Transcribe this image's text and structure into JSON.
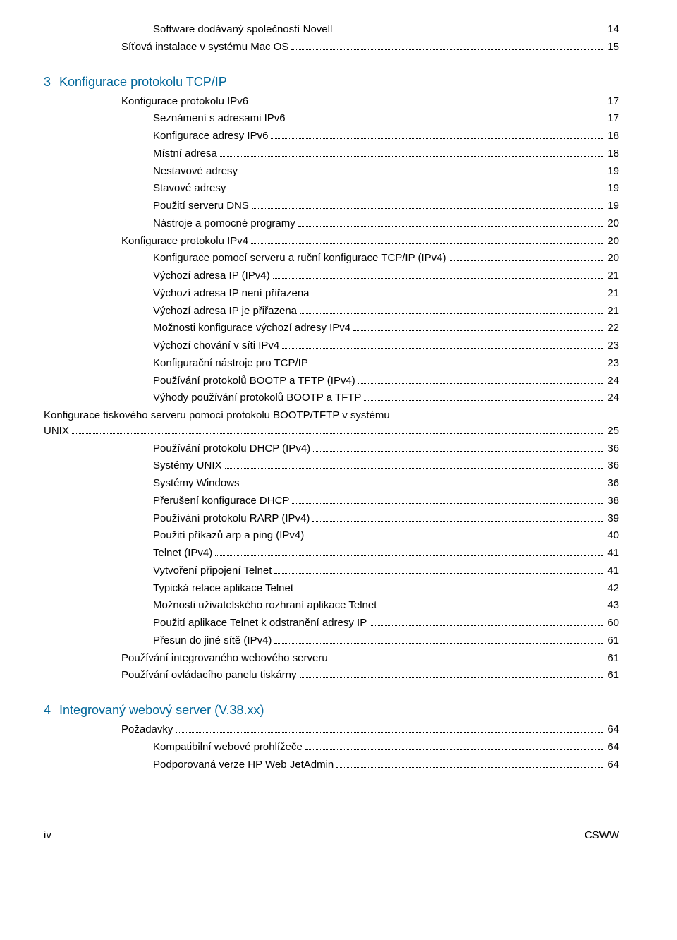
{
  "colors": {
    "heading": "#006699",
    "text": "#000000",
    "background": "#ffffff"
  },
  "typography": {
    "body_font": "Arial",
    "body_size_pt": 11,
    "heading_size_pt": 13
  },
  "entries": [
    {
      "level": 3,
      "label": "Software dodávaný společností Novell",
      "page": "14"
    },
    {
      "level": 2,
      "label": "Síťová instalace v systému Mac OS",
      "page": "15"
    },
    {
      "section_num": "3",
      "section_title": "Konfigurace protokolu TCP/IP"
    },
    {
      "level": 2,
      "label": "Konfigurace protokolu IPv6",
      "page": "17"
    },
    {
      "level": 3,
      "label": "Seznámení s adresami IPv6",
      "page": "17"
    },
    {
      "level": 3,
      "label": "Konfigurace adresy IPv6",
      "page": "18"
    },
    {
      "level": 3,
      "label": "Místní adresa",
      "page": "18"
    },
    {
      "level": 3,
      "label": "Nestavové adresy",
      "page": "19"
    },
    {
      "level": 3,
      "label": "Stavové adresy",
      "page": "19"
    },
    {
      "level": 3,
      "label": "Použití serveru DNS",
      "page": "19"
    },
    {
      "level": 3,
      "label": "Nástroje a pomocné programy",
      "page": "20"
    },
    {
      "level": 2,
      "label": "Konfigurace protokolu IPv4",
      "page": "20"
    },
    {
      "level": 3,
      "label": "Konfigurace pomocí serveru a ruční konfigurace TCP/IP (IPv4)",
      "page": "20"
    },
    {
      "level": 3,
      "label": "Výchozí adresa IP (IPv4)",
      "page": "21"
    },
    {
      "level": 3,
      "label": "Výchozí adresa IP není přiřazena",
      "page": "21"
    },
    {
      "level": 3,
      "label": "Výchozí adresa IP je přiřazena",
      "page": "21"
    },
    {
      "level": 3,
      "label": "Možnosti konfigurace výchozí adresy IPv4",
      "page": "22"
    },
    {
      "level": 3,
      "label": "Výchozí chování v síti IPv4",
      "page": "23"
    },
    {
      "level": 3,
      "label": "Konfigurační nástroje pro TCP/IP",
      "page": "23"
    },
    {
      "level": 3,
      "label": "Používání protokolů BOOTP a TFTP (IPv4)",
      "page": "24"
    },
    {
      "level": 3,
      "label": "Výhody používání protokolů BOOTP a TFTP",
      "page": "24"
    },
    {
      "level": 3,
      "label": "Konfigurace tiskového serveru pomocí protokolu BOOTP/TFTP v systému UNIX",
      "page": "25",
      "multiline": true
    },
    {
      "level": 3,
      "label": "Používání protokolu DHCP (IPv4)",
      "page": "36"
    },
    {
      "level": 3,
      "label": "Systémy UNIX",
      "page": "36"
    },
    {
      "level": 3,
      "label": "Systémy Windows",
      "page": "36"
    },
    {
      "level": 3,
      "label": "Přerušení konfigurace DHCP",
      "page": "38"
    },
    {
      "level": 3,
      "label": "Používání protokolu RARP (IPv4)",
      "page": "39"
    },
    {
      "level": 3,
      "label": "Použití příkazů arp a ping (IPv4)",
      "page": "40"
    },
    {
      "level": 3,
      "label": "Telnet (IPv4)",
      "page": "41"
    },
    {
      "level": 3,
      "label": "Vytvoření připojení Telnet",
      "page": "41"
    },
    {
      "level": 3,
      "label": "Typická relace aplikace Telnet",
      "page": "42"
    },
    {
      "level": 3,
      "label": "Možnosti uživatelského rozhraní aplikace Telnet",
      "page": "43"
    },
    {
      "level": 3,
      "label": "Použití aplikace Telnet k odstranění adresy IP",
      "page": "60"
    },
    {
      "level": 3,
      "label": "Přesun do jiné sítě (IPv4)",
      "page": "61"
    },
    {
      "level": 2,
      "label": "Používání integrovaného webového serveru",
      "page": "61"
    },
    {
      "level": 2,
      "label": "Používání ovládacího panelu tiskárny",
      "page": "61"
    },
    {
      "section_num": "4",
      "section_title": "Integrovaný webový server (V.38.xx)"
    },
    {
      "level": 2,
      "label": "Požadavky",
      "page": "64"
    },
    {
      "level": 3,
      "label": "Kompatibilní webové prohlížeče",
      "page": "64"
    },
    {
      "level": 3,
      "label": "Podporovaná verze HP Web JetAdmin",
      "page": "64"
    }
  ],
  "footer": {
    "left": "iv",
    "right": "CSWW"
  }
}
